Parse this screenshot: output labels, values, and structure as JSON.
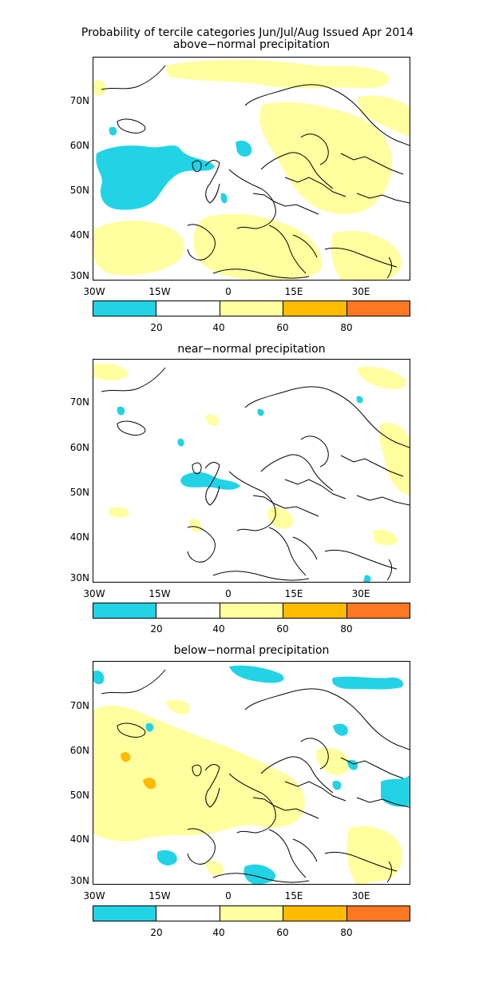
{
  "title": "Probability of tercile categories Jun/Jul/Aug Issued Apr 2014",
  "panels": [
    {
      "subtitle": "above−normal precipitation"
    },
    {
      "subtitle": "near−normal precipitation"
    },
    {
      "subtitle": "below−normal precipitation"
    }
  ],
  "lat_labels": [
    "70N",
    "60N",
    "50N",
    "40N",
    "30N"
  ],
  "lon_labels": [
    "30W",
    "15W",
    "0",
    "15E",
    "30E"
  ],
  "colorbar": {
    "colors": [
      "#22d3e6",
      "#ffffff",
      "#ffffa0",
      "#ffbb00",
      "#ff7722"
    ],
    "tick_labels": [
      "20",
      "40",
      "60",
      "80"
    ]
  }
}
